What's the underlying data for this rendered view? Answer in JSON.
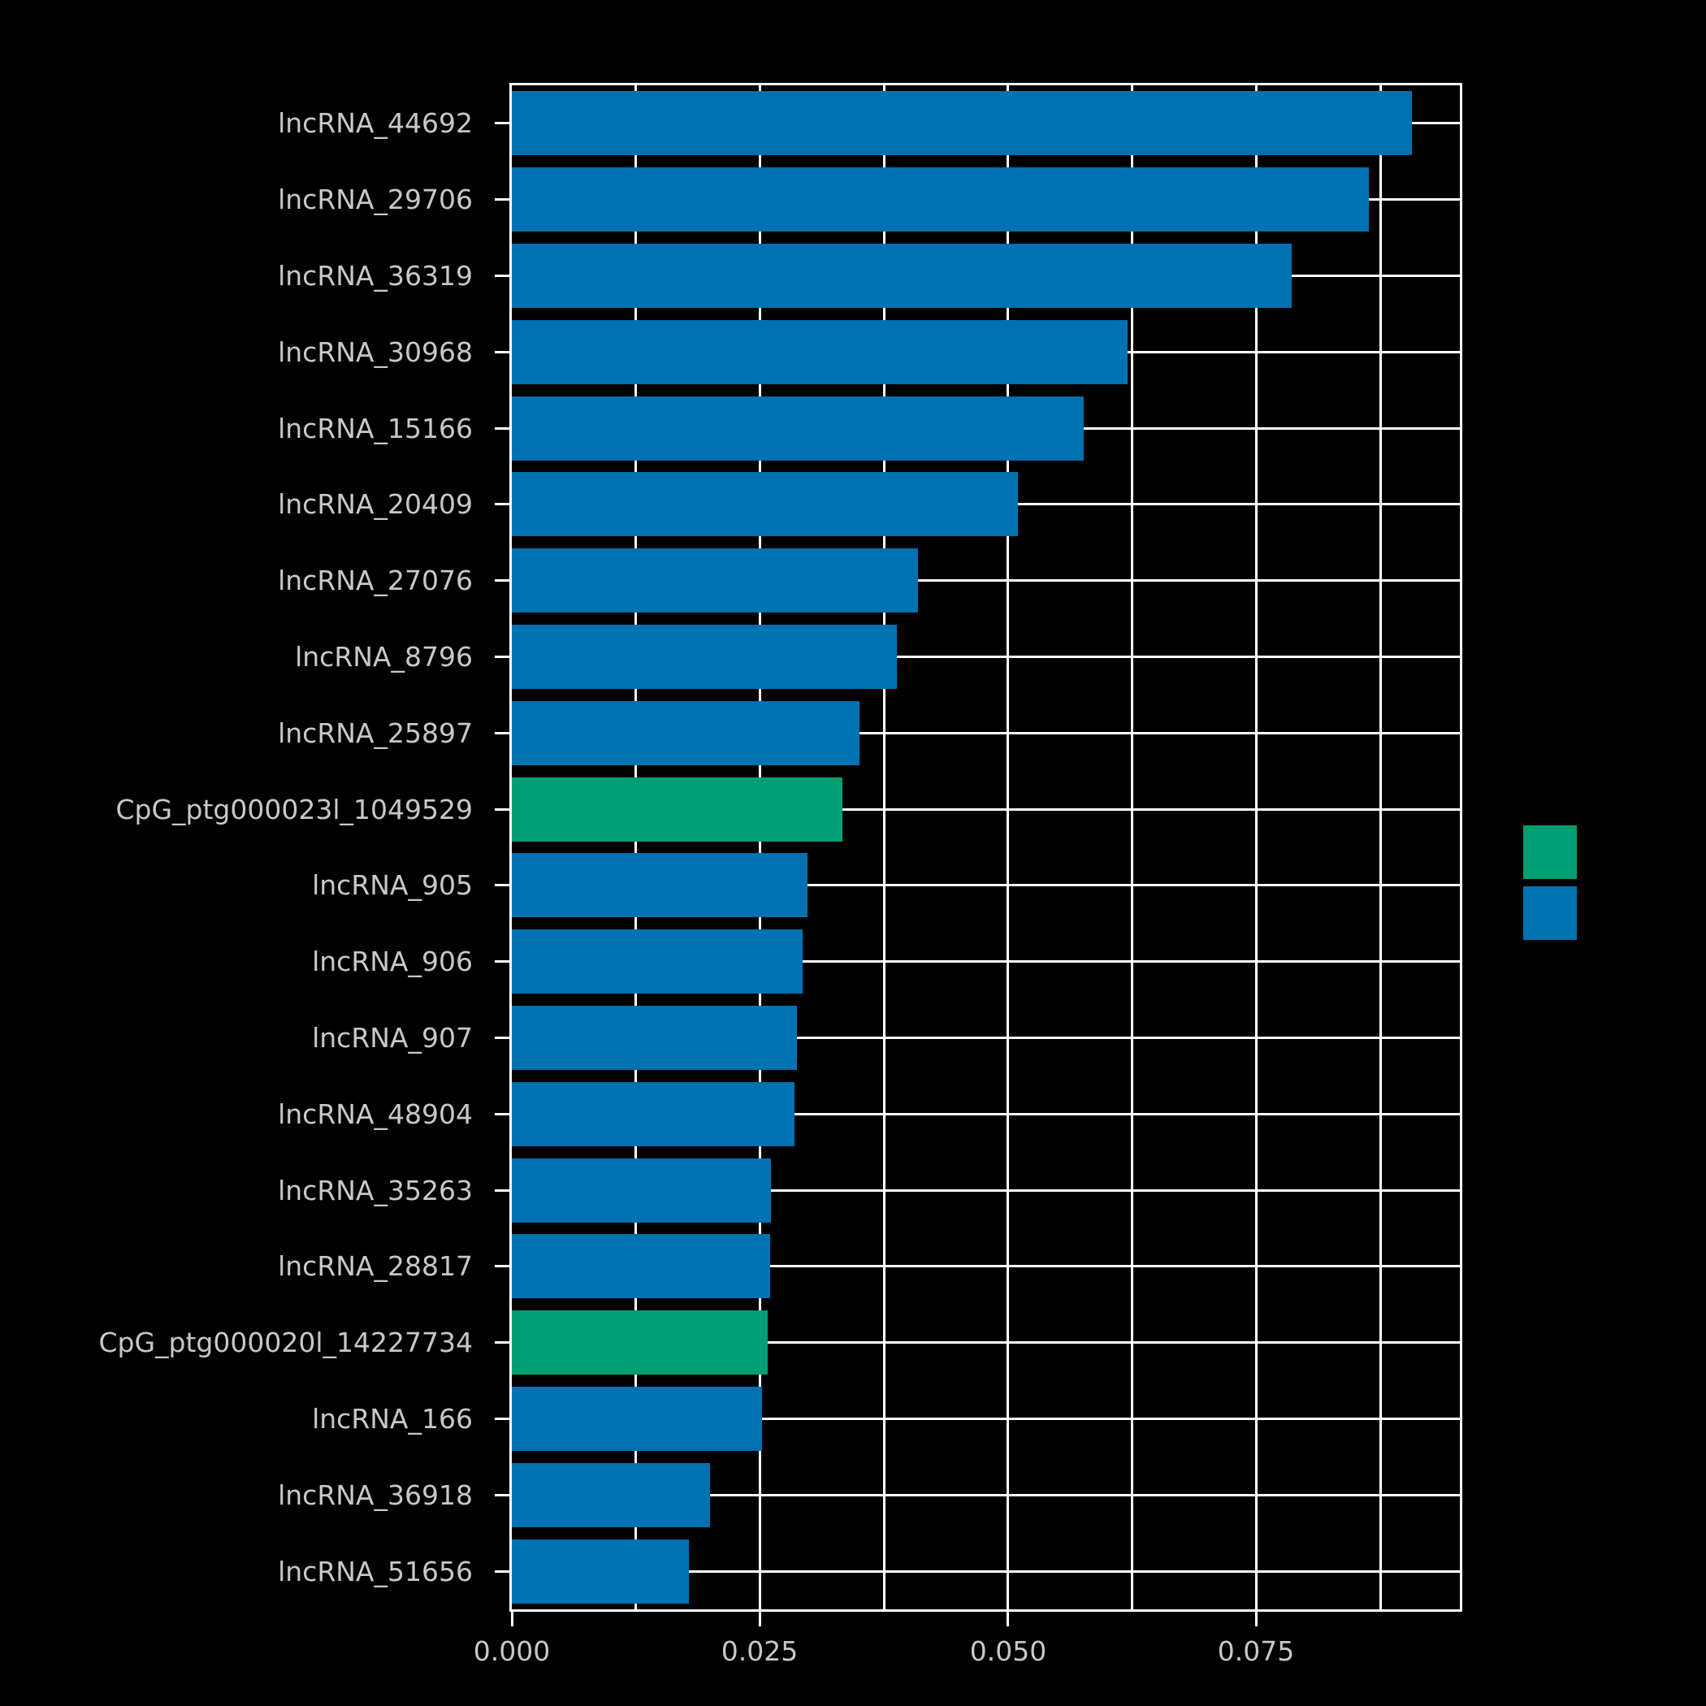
{
  "chart_data": {
    "type": "bar",
    "orientation": "horizontal",
    "title": "",
    "xlabel": "",
    "ylabel": "",
    "categories": [
      "lncRNA_44692",
      "lncRNA_29706",
      "lncRNA_36319",
      "lncRNA_30968",
      "lncRNA_15166",
      "lncRNA_20409",
      "lncRNA_27076",
      "lncRNA_8796",
      "lncRNA_25897",
      "CpG_ptg000023l_1049529",
      "lncRNA_905",
      "lncRNA_906",
      "lncRNA_907",
      "lncRNA_48904",
      "lncRNA_35263",
      "lncRNA_28817",
      "CpG_ptg000020l_14227734",
      "lncRNA_166",
      "lncRNA_36918",
      "lncRNA_51656"
    ],
    "values": [
      0.0907,
      0.0863,
      0.0786,
      0.062,
      0.0576,
      0.051,
      0.0409,
      0.0388,
      0.035,
      0.0333,
      0.0298,
      0.0293,
      0.0287,
      0.0285,
      0.0261,
      0.026,
      0.0258,
      0.0252,
      0.02,
      0.0178
    ],
    "bar_colors": [
      "#0072B2",
      "#0072B2",
      "#0072B2",
      "#0072B2",
      "#0072B2",
      "#0072B2",
      "#0072B2",
      "#0072B2",
      "#0072B2",
      "#009E73",
      "#0072B2",
      "#0072B2",
      "#0072B2",
      "#0072B2",
      "#0072B2",
      "#0072B2",
      "#009E73",
      "#0072B2",
      "#0072B2",
      "#0072B2"
    ],
    "xlim": [
      0,
      0.0955
    ],
    "xticks": [
      0.0,
      0.025,
      0.05,
      0.075
    ],
    "xtick_labels": [
      "0.000",
      "0.025",
      "0.050",
      "0.075"
    ],
    "grid_step": 0.0125,
    "grid": "on",
    "grid_color": "#ffffff",
    "background_color": "#000000",
    "text_color": "#c8c8c8",
    "legend": {
      "position": "right",
      "swatches": [
        {
          "color": "#009E73"
        },
        {
          "color": "#0072B2"
        }
      ]
    }
  }
}
